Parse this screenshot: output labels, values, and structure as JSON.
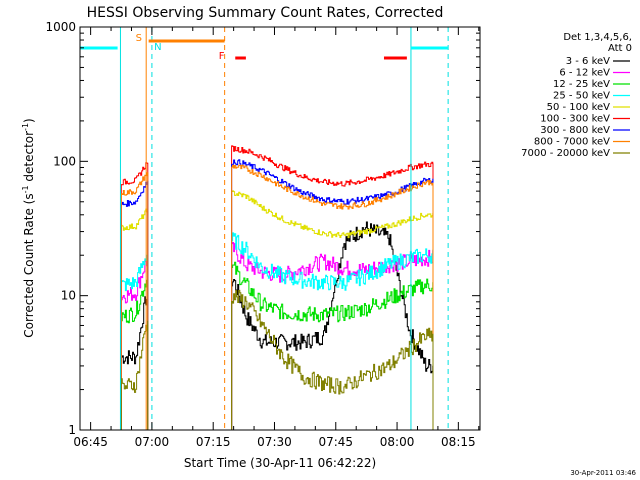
{
  "chart_data": {
    "type": "line",
    "title": "HESSI Observing Summary Count Rates, Corrected",
    "xlabel": "Start Time (30-Apr-11 06:42:22)",
    "ylabel_main": "Corrected Count Rate (s",
    "ylabel_sup1": "-1",
    "ylabel_mid": " detector",
    "ylabel_sup2": "-1",
    "ylabel_end": ")",
    "yscale": "log",
    "ylim": [
      1,
      1000
    ],
    "xlim_minutes": [
      402.4,
      500.3
    ],
    "grid": false,
    "legend_placement": "right",
    "legend_header": [
      "Det 1,3,4,5,6,",
      "Att 0"
    ],
    "xticks": [
      {
        "label": "06:45",
        "minutes": 405
      },
      {
        "label": "07:00",
        "minutes": 420
      },
      {
        "label": "07:15",
        "minutes": 435
      },
      {
        "label": "07:30",
        "minutes": 450
      },
      {
        "label": "07:45",
        "minutes": 465
      },
      {
        "label": "08:00",
        "minutes": 480
      },
      {
        "label": "08:15",
        "minutes": 495
      }
    ],
    "yticks": [
      {
        "label": "1",
        "value": 1
      },
      {
        "label": "10",
        "value": 10
      },
      {
        "label": "100",
        "value": 100
      },
      {
        "label": "1000",
        "value": 1000
      }
    ],
    "data_segments": [
      [
        412.5,
        419.0
      ],
      [
        439.5,
        488.8
      ]
    ],
    "series": [
      {
        "name": "3 - 6 keV",
        "color": "#000000",
        "values": [
          3.5,
          3.5,
          9.5,
          13,
          7,
          4.5,
          4.5,
          4.5,
          5,
          25,
          32,
          27,
          5.5,
          3
        ]
      },
      {
        "name": "6 - 12 keV",
        "color": "#ff00ff",
        "values": [
          10,
          10.5,
          18,
          22,
          17,
          15,
          14,
          16,
          18,
          16,
          15.5,
          17,
          18,
          19
        ]
      },
      {
        "name": "12 - 25 keV",
        "color": "#00e000",
        "values": [
          7,
          7.5,
          13,
          16,
          12,
          8.5,
          7.5,
          7.3,
          7.2,
          7.4,
          8,
          9.5,
          11,
          12
        ]
      },
      {
        "name": "25 - 50 keV",
        "color": "#00ffff",
        "values": [
          12,
          12.5,
          20,
          26,
          22,
          16,
          14,
          13,
          12.5,
          12.5,
          14,
          17,
          19,
          20
        ]
      },
      {
        "name": "50 - 100 keV",
        "color": "#e0e000",
        "values": [
          32,
          33,
          42,
          58,
          55,
          45,
          37,
          32,
          29,
          28,
          30,
          33,
          37,
          40
        ]
      },
      {
        "name": "100 - 300 keV",
        "color": "#ff0000",
        "values": [
          70,
          72,
          95,
          125,
          120,
          108,
          90,
          77,
          70,
          68,
          72,
          80,
          90,
          95
        ]
      },
      {
        "name": "300 - 800 keV",
        "color": "#0000ff",
        "values": [
          48,
          50,
          68,
          100,
          95,
          85,
          70,
          58,
          52,
          50,
          52,
          57,
          65,
          72
        ]
      },
      {
        "name": "800 - 7000 keV",
        "color": "#ff8000",
        "values": [
          58,
          60,
          80,
          92,
          88,
          78,
          64,
          55,
          48,
          46,
          48,
          55,
          63,
          70
        ]
      },
      {
        "name": "7000 - 20000 keV",
        "color": "#808000",
        "values": [
          2.1,
          2.2,
          6,
          10,
          9,
          6,
          3.5,
          2.5,
          2.2,
          2.1,
          2.5,
          3,
          4,
          5
        ]
      }
    ],
    "series_times_minutes": [
      413,
      416,
      418.5,
      440,
      443,
      447,
      452,
      457,
      462,
      467,
      472,
      478,
      483,
      487
    ],
    "annotations": [
      {
        "label": "S",
        "minutes": 418.5,
        "color": "#ff8000"
      },
      {
        "label": "N",
        "minutes": 420.0,
        "color": "#00e0e0"
      },
      {
        "label": "F",
        "minutes": 437.8,
        "color": "#ff0000"
      }
    ],
    "saa_intervals": [
      {
        "color": "#ff8000",
        "start": 419.2,
        "end": 437.8
      }
    ],
    "night_intervals": [
      {
        "color": "#ff0000",
        "start": 440.4,
        "end": 443.0
      },
      {
        "color": "#ff0000",
        "start": 476.8,
        "end": 482.4
      }
    ],
    "cyan_intervals": [
      {
        "start": 402.4,
        "end": 411.6
      },
      {
        "start": 483.4,
        "end": 492.4
      }
    ],
    "vlines": [
      {
        "minutes": 412.3,
        "color": "#00e0e0",
        "dashed": false
      },
      {
        "minutes": 418.6,
        "color": "#ff8000",
        "dashed": false
      },
      {
        "minutes": 420.0,
        "color": "#00e0e0",
        "dashed": true
      },
      {
        "minutes": 437.8,
        "color": "#ff8000",
        "dashed": true
      },
      {
        "minutes": 483.4,
        "color": "#00e0e0",
        "dashed": false
      },
      {
        "minutes": 492.5,
        "color": "#00e0e0",
        "dashed": true
      }
    ],
    "footer_date": "30-Apr-2011 03:46"
  }
}
